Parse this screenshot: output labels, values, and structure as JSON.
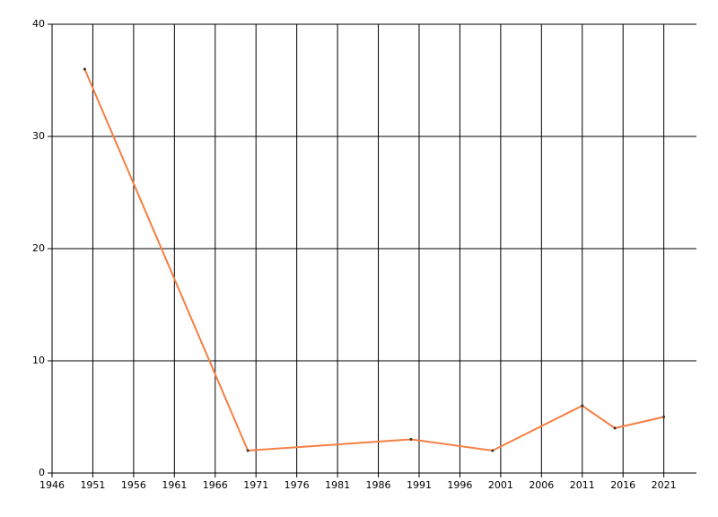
{
  "chart_data": {
    "type": "line",
    "x": [
      1950,
      1970,
      1990,
      2000,
      2011,
      2015,
      2021
    ],
    "series": [
      {
        "color": "#f57f43",
        "values": [
          36,
          2,
          3,
          2,
          6,
          4,
          5
        ]
      }
    ],
    "xlim": [
      1946,
      2025
    ],
    "xticks": [
      1946,
      1951,
      1956,
      1961,
      1966,
      1971,
      1976,
      1981,
      1986,
      1991,
      1996,
      2001,
      2006,
      2011,
      2016,
      2021
    ],
    "ylim": [
      0,
      40
    ],
    "yticks": [
      0,
      10,
      20,
      30,
      40
    ],
    "grid": true
  }
}
